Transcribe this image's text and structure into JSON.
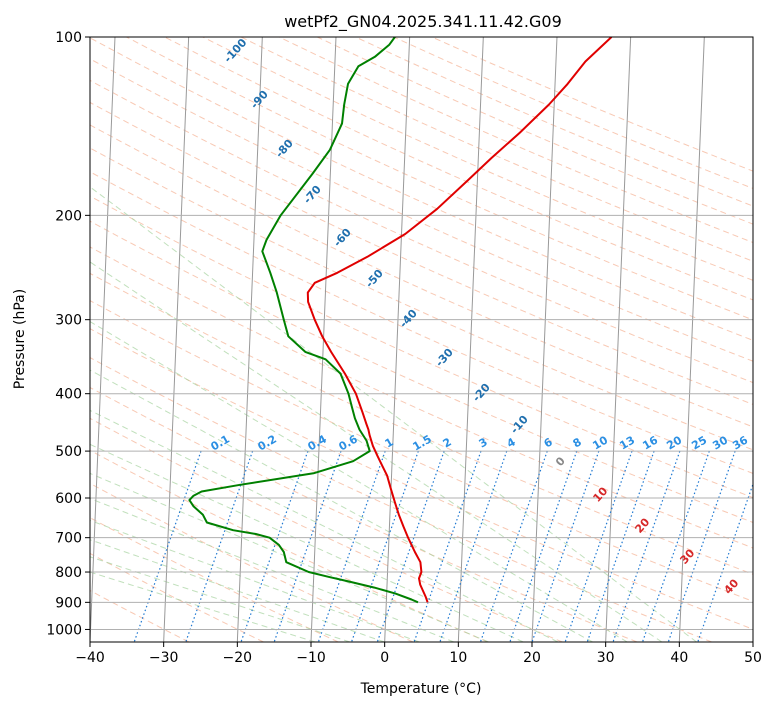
{
  "chart_data": {
    "type": "line",
    "title": "wetPf2_GN04.2025.341.11.42.G09",
    "xlabel": "Temperature (°C)",
    "ylabel": "Pressure (hPa)",
    "xlim": [
      -40,
      50
    ],
    "ylim": [
      1050,
      100
    ],
    "y_scale": "log",
    "grid": true,
    "x_ticks": [
      -40,
      -30,
      -20,
      -10,
      0,
      10,
      20,
      30,
      40,
      50
    ],
    "y_ticks": [
      100,
      200,
      300,
      400,
      500,
      600,
      700,
      800,
      900,
      1000
    ],
    "series": [
      {
        "color": "#e00000",
        "x": [
          5.6,
          5.3,
          4.9,
          4.5,
          4.3,
          4.6,
          4.4,
          3.6,
          2.6,
          1.9,
          1.2,
          0.6,
          0.0,
          -0.6,
          -1.3,
          -2.0,
          -2.7,
          -3.2,
          -3.4,
          -3.7,
          -4.3,
          -5.3,
          -6.9,
          -8.9,
          -10.2,
          -11.3,
          -12.3,
          -12.4,
          -11.5,
          -8.5,
          -4.5,
          0.5,
          4.7,
          8.6,
          11.8,
          15.5,
          19.3,
          21.7,
          24.0,
          27.4
        ],
        "y": [
          900,
          880,
          860,
          840,
          820,
          800,
          770,
          740,
          700,
          670,
          640,
          610,
          580,
          550,
          530,
          510,
          490,
          470,
          460,
          450,
          430,
          400,
          370,
          340,
          320,
          300,
          280,
          270,
          260,
          250,
          235,
          215,
          195,
          175,
          160,
          145,
          130,
          120,
          110,
          100
        ]
      },
      {
        "color": "#008000",
        "x": [
          4.3,
          3.4,
          1.2,
          -1.7,
          -5.2,
          -8.0,
          -10.7,
          -13.8,
          -14.2,
          -14.9,
          -16.2,
          -18.1,
          -21.2,
          -24.8,
          -25.4,
          -26.7,
          -27.3,
          -26.8,
          -25.7,
          -20.5,
          -10.6,
          -5.3,
          -3.1,
          -3.6,
          -4.6,
          -5.3,
          -5.8,
          -6.3,
          -7.5,
          -9.6,
          -12.4,
          -14.8,
          -15.5,
          -16.6,
          -17.6,
          -18.8,
          -18.3,
          -16.5,
          -12.4,
          -10.2,
          -8.7,
          -8.5,
          -8.1,
          -6.8,
          -4.6,
          -2.7,
          -2.0,
          -1.2
        ],
        "y": [
          900,
          890,
          870,
          850,
          830,
          815,
          800,
          770,
          740,
          720,
          700,
          690,
          680,
          660,
          640,
          620,
          605,
          595,
          585,
          570,
          545,
          520,
          500,
          480,
          460,
          440,
          420,
          400,
          370,
          350,
          340,
          320,
          300,
          270,
          250,
          230,
          220,
          200,
          170,
          155,
          140,
          130,
          120,
          112,
          108,
          103,
          100,
          98
        ]
      }
    ],
    "dry_adiabat_labels": [
      -100,
      -90,
      -80,
      -70,
      -60,
      -50,
      -40,
      -30,
      -20,
      -10
    ],
    "moist_adiabat_labels": [
      0,
      10,
      20,
      30,
      40
    ],
    "mixing_ratio_labels": [
      "0.1",
      "0.2",
      "0.4",
      "0.6",
      "1",
      "1.5",
      "2",
      "3",
      "4",
      "6",
      "8",
      "10",
      "13",
      "16",
      "20",
      "25",
      "30",
      "36"
    ]
  }
}
